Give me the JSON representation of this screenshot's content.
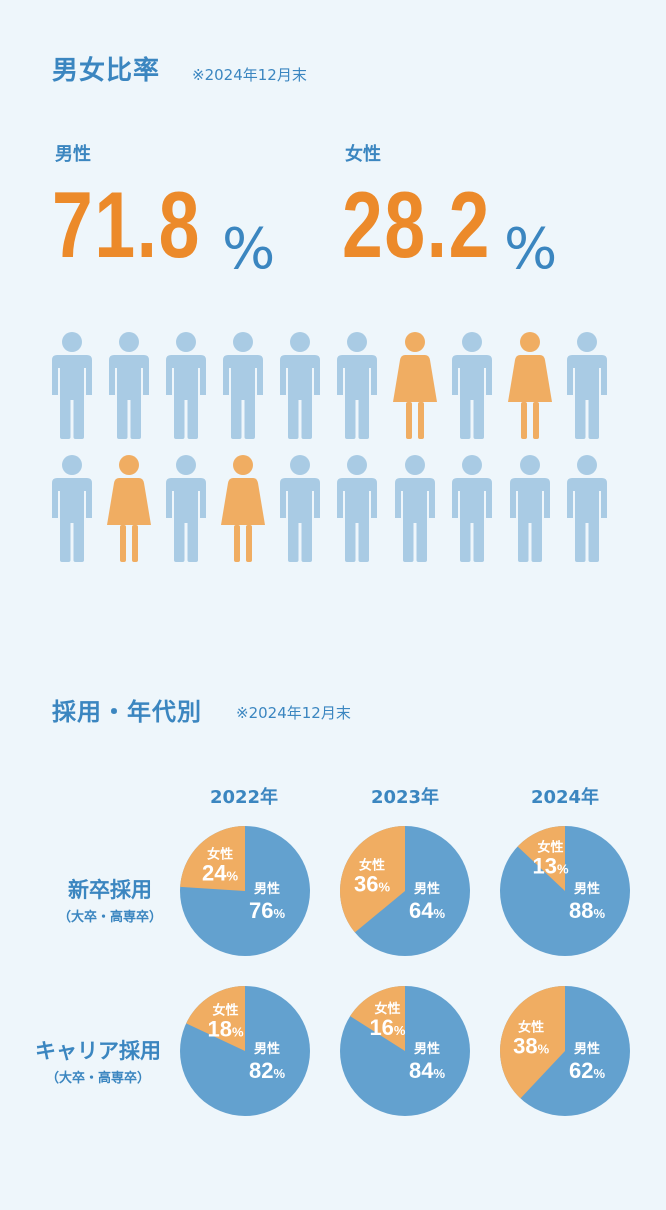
{
  "ratio": {
    "title": "男女比率",
    "note": "※2024年12月末",
    "male_label": "男性",
    "male_value": "71.8",
    "female_label": "女性",
    "female_value": "28.2",
    "percent_sign": "%",
    "colors": {
      "male": "#a9cbe4",
      "female": "#f0ad62",
      "accent": "#3b86c0",
      "orange": "#ec8a2a"
    },
    "icon_rows": [
      [
        "male",
        "male",
        "male",
        "male",
        "male",
        "male",
        "female",
        "male",
        "female",
        "male"
      ],
      [
        "male",
        "female",
        "male",
        "female",
        "male",
        "male",
        "male",
        "male",
        "male",
        "male"
      ]
    ]
  },
  "hiring": {
    "title": "採用・年代別",
    "note": "※2024年12月末",
    "years": [
      "2022年",
      "2023年",
      "2024年"
    ],
    "rows": [
      {
        "label": "新卒採用",
        "sub": "（大卒・高専卒）"
      },
      {
        "label": "キャリア採用",
        "sub": "（大卒・高専卒）"
      }
    ],
    "male_label": "男性",
    "female_label": "女性",
    "pct_unit": "%"
  },
  "chart_data": [
    {
      "type": "pie",
      "title": "新卒採用 2022年",
      "labels": [
        "男性",
        "女性"
      ],
      "values": [
        76,
        24
      ],
      "colors": [
        "#63a1cf",
        "#f0ad62"
      ]
    },
    {
      "type": "pie",
      "title": "新卒採用 2023年",
      "labels": [
        "男性",
        "女性"
      ],
      "values": [
        64,
        36
      ],
      "colors": [
        "#63a1cf",
        "#f0ad62"
      ]
    },
    {
      "type": "pie",
      "title": "新卒採用 2024年",
      "labels": [
        "男性",
        "女性"
      ],
      "values": [
        88,
        13
      ],
      "colors": [
        "#63a1cf",
        "#f0ad62"
      ]
    },
    {
      "type": "pie",
      "title": "キャリア採用 2022年",
      "labels": [
        "男性",
        "女性"
      ],
      "values": [
        82,
        18
      ],
      "colors": [
        "#63a1cf",
        "#f0ad62"
      ]
    },
    {
      "type": "pie",
      "title": "キャリア採用 2023年",
      "labels": [
        "男性",
        "女性"
      ],
      "values": [
        84,
        16
      ],
      "colors": [
        "#63a1cf",
        "#f0ad62"
      ]
    },
    {
      "type": "pie",
      "title": "キャリア採用 2024年",
      "labels": [
        "男性",
        "女性"
      ],
      "values": [
        62,
        38
      ],
      "colors": [
        "#63a1cf",
        "#f0ad62"
      ]
    }
  ]
}
